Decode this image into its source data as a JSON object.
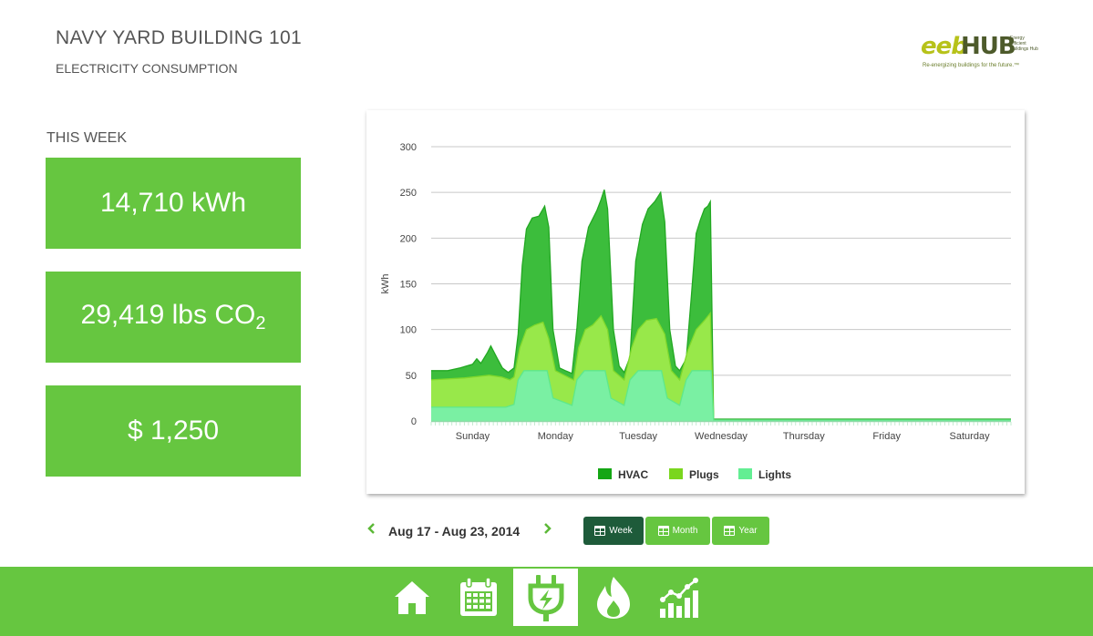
{
  "header": {
    "title": "NAVY YARD BUILDING 101",
    "subtitle": "ELECTRICITY CONSUMPTION"
  },
  "logo": {
    "brand_prefix": "eeb",
    "brand_suffix": "HUB",
    "side_text": "Energy Efficient Buildings Hub",
    "tagline": "Re-energizing buildings for the future.™"
  },
  "summary": {
    "label": "THIS WEEK",
    "energy": "14,710 kWh",
    "co2_value": "29,419 lbs CO",
    "co2_sub": "2",
    "cost": "$ 1,250"
  },
  "colors": {
    "accent": "#66c640",
    "active_button": "#1e5b3a",
    "hvac": "#3cbd3c",
    "plugs": "#98e84a",
    "lights": "#7af0a3"
  },
  "chart_data": {
    "type": "area",
    "stacked": true,
    "ylabel": "kWh",
    "ylim": [
      0,
      300
    ],
    "yticks": [
      0,
      50,
      100,
      150,
      200,
      250,
      300
    ],
    "xlabels": [
      "Sunday",
      "Monday",
      "Tuesday",
      "Wednesday",
      "Thursday",
      "Friday",
      "Saturday"
    ],
    "grid": true,
    "legend_position": "bottom",
    "series": [
      {
        "name": "HVAC",
        "color": "#3cbd3c",
        "legend_color": "#14a614"
      },
      {
        "name": "Plugs",
        "color": "#98e84a",
        "legend_color": "#7ad61e"
      },
      {
        "name": "Lights",
        "color": "#7af0a3",
        "legend_color": "#63ee93"
      }
    ],
    "days_with_data": 4.5,
    "profile_total": [
      [
        0.0,
        55
      ],
      [
        0.2,
        55
      ],
      [
        0.35,
        58
      ],
      [
        0.5,
        62
      ],
      [
        0.55,
        68
      ],
      [
        0.6,
        63
      ],
      [
        0.68,
        75
      ],
      [
        0.72,
        82
      ],
      [
        0.8,
        68
      ],
      [
        0.86,
        58
      ],
      [
        0.93,
        53
      ],
      [
        1.0,
        58
      ],
      [
        1.05,
        95
      ],
      [
        1.1,
        170
      ],
      [
        1.15,
        210
      ],
      [
        1.22,
        222
      ],
      [
        1.3,
        224
      ],
      [
        1.37,
        235
      ],
      [
        1.42,
        212
      ],
      [
        1.47,
        100
      ],
      [
        1.55,
        58
      ],
      [
        1.62,
        55
      ],
      [
        1.7,
        52
      ],
      [
        1.76,
        102
      ],
      [
        1.82,
        175
      ],
      [
        1.9,
        212
      ],
      [
        2.0,
        230
      ],
      [
        2.05,
        242
      ],
      [
        2.09,
        253
      ],
      [
        2.13,
        232
      ],
      [
        2.2,
        100
      ],
      [
        2.27,
        60
      ],
      [
        2.33,
        53
      ],
      [
        2.4,
        70
      ],
      [
        2.47,
        175
      ],
      [
        2.55,
        215
      ],
      [
        2.62,
        232
      ],
      [
        2.7,
        240
      ],
      [
        2.77,
        250
      ],
      [
        2.82,
        218
      ],
      [
        2.88,
        100
      ],
      [
        2.95,
        60
      ],
      [
        3.0,
        55
      ],
      [
        3.08,
        68
      ],
      [
        3.14,
        135
      ],
      [
        3.2,
        205
      ],
      [
        3.25,
        220
      ],
      [
        3.3,
        232
      ],
      [
        3.34,
        235
      ],
      [
        3.37,
        240
      ],
      [
        3.41,
        2
      ],
      [
        4.5,
        2
      ],
      [
        7.0,
        2
      ]
    ],
    "profile_plugs_lights": [
      [
        0.0,
        45
      ],
      [
        0.4,
        47
      ],
      [
        0.7,
        50
      ],
      [
        0.85,
        48
      ],
      [
        0.95,
        45
      ],
      [
        1.0,
        48
      ],
      [
        1.07,
        80
      ],
      [
        1.15,
        100
      ],
      [
        1.25,
        105
      ],
      [
        1.35,
        108
      ],
      [
        1.42,
        90
      ],
      [
        1.5,
        55
      ],
      [
        1.65,
        48
      ],
      [
        1.72,
        45
      ],
      [
        1.78,
        80
      ],
      [
        1.86,
        100
      ],
      [
        1.95,
        105
      ],
      [
        2.05,
        115
      ],
      [
        2.13,
        100
      ],
      [
        2.2,
        55
      ],
      [
        2.33,
        45
      ],
      [
        2.42,
        80
      ],
      [
        2.5,
        100
      ],
      [
        2.6,
        110
      ],
      [
        2.72,
        112
      ],
      [
        2.82,
        95
      ],
      [
        2.9,
        55
      ],
      [
        3.0,
        45
      ],
      [
        3.1,
        78
      ],
      [
        3.2,
        100
      ],
      [
        3.3,
        110
      ],
      [
        3.37,
        118
      ],
      [
        3.41,
        1
      ],
      [
        7.0,
        1
      ]
    ],
    "profile_lights": [
      [
        0.0,
        15
      ],
      [
        0.9,
        15
      ],
      [
        1.0,
        18
      ],
      [
        1.05,
        45
      ],
      [
        1.12,
        55
      ],
      [
        1.4,
        55
      ],
      [
        1.47,
        25
      ],
      [
        1.7,
        17
      ],
      [
        1.76,
        45
      ],
      [
        1.85,
        55
      ],
      [
        2.1,
        55
      ],
      [
        2.17,
        25
      ],
      [
        2.33,
        17
      ],
      [
        2.4,
        45
      ],
      [
        2.5,
        55
      ],
      [
        2.78,
        55
      ],
      [
        2.85,
        25
      ],
      [
        3.0,
        17
      ],
      [
        3.08,
        45
      ],
      [
        3.15,
        55
      ],
      [
        3.38,
        55
      ],
      [
        3.41,
        1
      ],
      [
        7.0,
        1
      ]
    ]
  },
  "controls": {
    "prev_icon": "chevron-left-icon",
    "next_icon": "chevron-right-icon",
    "date_range": "Aug 17 - Aug 23, 2014",
    "buttons": [
      "Week",
      "Month",
      "Year"
    ],
    "active_button": "Week"
  },
  "footer": {
    "icons": [
      "home-icon",
      "calendar-icon",
      "electricity-plug-icon",
      "flame-icon",
      "chart-icon"
    ],
    "active": "electricity-plug-icon"
  }
}
